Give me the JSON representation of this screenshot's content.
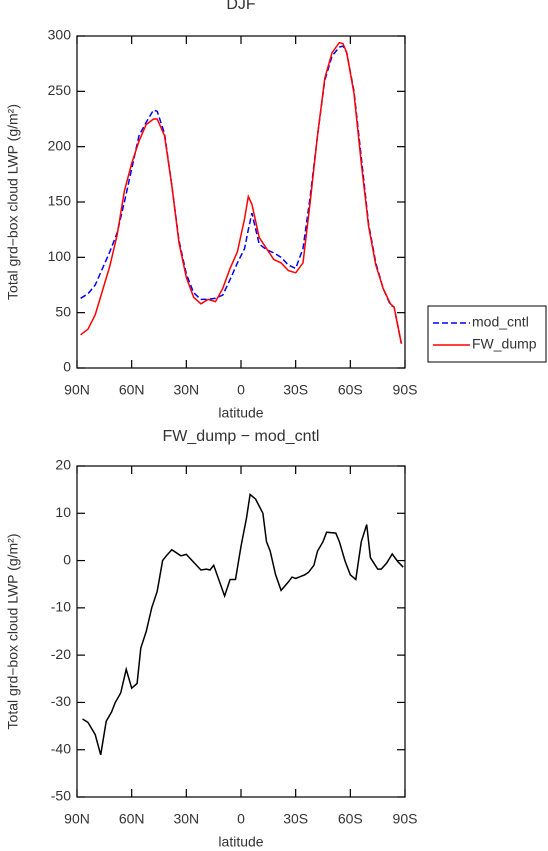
{
  "chart_data": [
    {
      "type": "line",
      "title": "DJF",
      "xlabel": "latitude",
      "ylabel": "Total grd−box cloud LWP (g/m²)",
      "x": [
        88,
        84,
        80,
        76,
        72,
        68,
        64,
        60,
        56,
        52,
        48,
        46,
        42,
        38,
        34,
        30,
        26,
        22,
        18,
        14,
        10,
        6,
        2,
        -2,
        -4,
        -6,
        -10,
        -14,
        -18,
        -22,
        -26,
        -30,
        -34,
        -38,
        -42,
        -46,
        -50,
        -54,
        -56,
        -58,
        -62,
        -66,
        -70,
        -74,
        -78,
        -82,
        -84,
        -88
      ],
      "series": [
        {
          "name": "mod_cntl",
          "color": "#0000ff",
          "linestyle": "dashed",
          "values": [
            63,
            67,
            75,
            90,
            105,
            122,
            150,
            180,
            210,
            222,
            233,
            232,
            212,
            165,
            115,
            85,
            68,
            62,
            62,
            63,
            66,
            80,
            95,
            108,
            125,
            140,
            112,
            107,
            104,
            100,
            93,
            90,
            108,
            155,
            210,
            260,
            282,
            290,
            291,
            285,
            250,
            190,
            130,
            95,
            72,
            57,
            55,
            22
          ]
        },
        {
          "name": "FW_dump",
          "color": "#ff0000",
          "linestyle": "solid",
          "values": [
            30,
            35,
            48,
            70,
            92,
            120,
            160,
            185,
            205,
            220,
            225,
            225,
            210,
            165,
            113,
            82,
            64,
            58,
            62,
            60,
            72,
            90,
            105,
            135,
            155,
            148,
            118,
            108,
            98,
            95,
            88,
            86,
            95,
            150,
            210,
            262,
            285,
            294,
            293,
            285,
            248,
            185,
            128,
            93,
            72,
            58,
            55,
            22
          ]
        }
      ],
      "xlim": [
        90,
        -90
      ],
      "xticks": [
        {
          "value": 90,
          "label": "90N"
        },
        {
          "value": 60,
          "label": "60N"
        },
        {
          "value": 30,
          "label": "30N"
        },
        0,
        {
          "value": -30,
          "label": "30S"
        },
        {
          "value": -60,
          "label": "60S"
        },
        {
          "value": -90,
          "label": "90S"
        }
      ],
      "ylim": [
        0,
        300
      ],
      "yticks": [
        0,
        50,
        100,
        150,
        200,
        250,
        300
      ],
      "legend": "right"
    },
    {
      "type": "line",
      "title": "FW_dump − mod_cntl",
      "xlabel": "latitude",
      "ylabel": "Total grd−box cloud LWP (g/m²)",
      "x": [
        87,
        84,
        80,
        77,
        74,
        71,
        69,
        66,
        63,
        60,
        57,
        55,
        52,
        49,
        46,
        43,
        41,
        38,
        33,
        30,
        22,
        19,
        17,
        15,
        9,
        6,
        3,
        0,
        -3,
        -5,
        -8,
        -12,
        -14,
        -16,
        -19,
        -22,
        -26,
        -28,
        -30,
        -35,
        -37,
        -40,
        -42,
        -45,
        -47,
        -52,
        -54,
        -57,
        -60,
        -63,
        -66,
        -69,
        -71,
        -75,
        -77,
        -80,
        -83,
        -86,
        -89
      ],
      "series": [
        {
          "color": "#000000",
          "linestyle": "solid",
          "values": [
            -33.5,
            -34.2,
            -36.8,
            -41.1,
            -34,
            -32,
            -30,
            -28,
            -23,
            -27,
            -26,
            -18.5,
            -15,
            -10,
            -6.5,
            0,
            1,
            2.3,
            1,
            1.3,
            -2,
            -1.8,
            -2,
            -1,
            -7.5,
            -4,
            -4,
            3,
            9,
            14,
            13,
            10,
            4,
            2,
            -3,
            -6.3,
            -4.5,
            -3.5,
            -3.8,
            -3,
            -2.5,
            -1,
            2,
            4,
            6,
            5.8,
            4,
            0,
            -3,
            -4,
            4,
            7.6,
            0.6,
            -1.8,
            -1.8,
            -0.5,
            1.4,
            -0.2,
            -1.4
          ]
        }
      ],
      "xlim": [
        90,
        -90
      ],
      "xticks": [
        {
          "value": 90,
          "label": "90N"
        },
        {
          "value": 60,
          "label": "60N"
        },
        {
          "value": 30,
          "label": "30N"
        },
        0,
        {
          "value": -30,
          "label": "30S"
        },
        {
          "value": -60,
          "label": "60S"
        },
        {
          "value": -90,
          "label": "90S"
        }
      ],
      "ylim": [
        -50,
        20
      ],
      "yticks": [
        -50,
        -40,
        -30,
        -20,
        -10,
        0,
        10,
        20
      ]
    }
  ]
}
